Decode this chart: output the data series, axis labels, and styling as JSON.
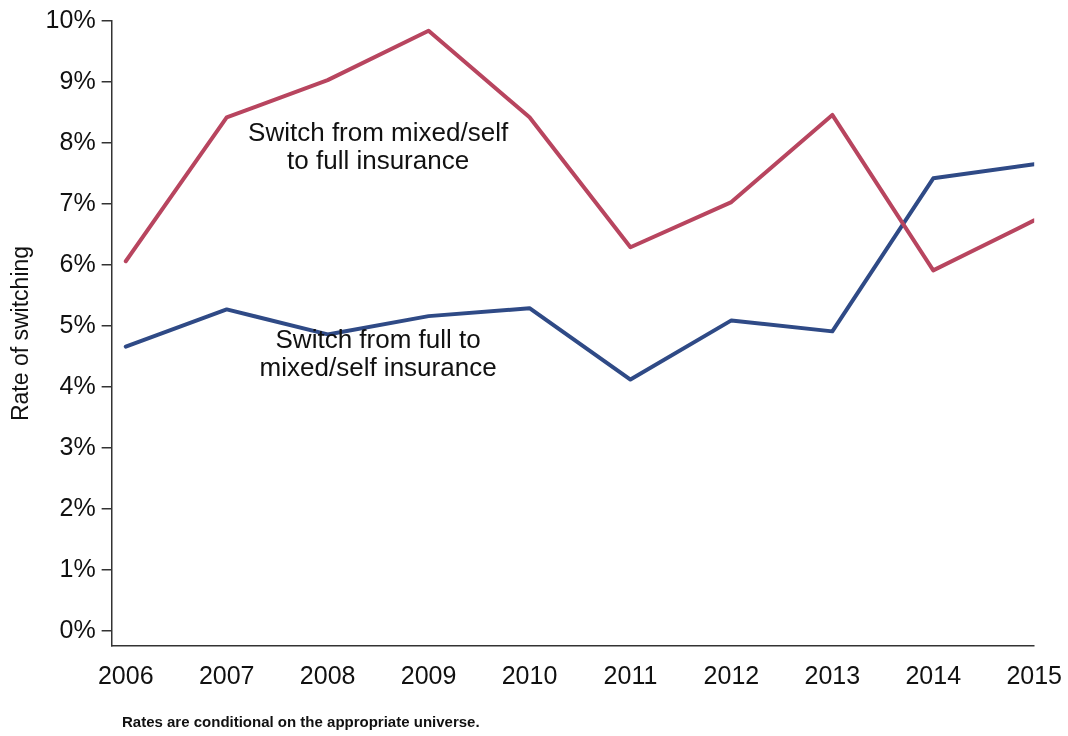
{
  "chart_data": {
    "type": "line",
    "ylabel": "Rate of switching",
    "x": [
      2006,
      2007,
      2008,
      2009,
      2010,
      2011,
      2012,
      2013,
      2014,
      2015
    ],
    "xlim": [
      2005.86,
      2015
    ],
    "xticks": [
      2006,
      2007,
      2008,
      2009,
      2010,
      2011,
      2012,
      2013,
      2014,
      2015
    ],
    "ylim": [
      -0.25,
      10
    ],
    "yticks": [
      {
        "value": 0,
        "label": "0%"
      },
      {
        "value": 1,
        "label": "1%"
      },
      {
        "value": 2,
        "label": "2%"
      },
      {
        "value": 3,
        "label": "3%"
      },
      {
        "value": 4,
        "label": "4%"
      },
      {
        "value": 5,
        "label": "5%"
      },
      {
        "value": 6,
        "label": "6%"
      },
      {
        "value": 7,
        "label": "7%"
      },
      {
        "value": 8,
        "label": "8%"
      },
      {
        "value": 9,
        "label": "9%"
      },
      {
        "value": 10,
        "label": "10%"
      }
    ],
    "series": [
      {
        "name": "Switch from mixed/self\nto full insurance",
        "color": "#b8455f",
        "values": [
          6.06,
          8.42,
          9.03,
          9.84,
          8.42,
          6.29,
          7.03,
          8.46,
          5.91,
          6.73
        ]
      },
      {
        "name": "Switch from full to\nmixed/self insurance",
        "color": "#2f4a86",
        "values": [
          4.66,
          5.27,
          4.86,
          5.16,
          5.29,
          4.12,
          5.09,
          4.91,
          7.42,
          7.65
        ]
      }
    ],
    "annotations": [
      "Rates are conditional on the appropriate universe."
    ],
    "grid": false,
    "legend": false,
    "marker": "none",
    "line_style": "solid"
  }
}
